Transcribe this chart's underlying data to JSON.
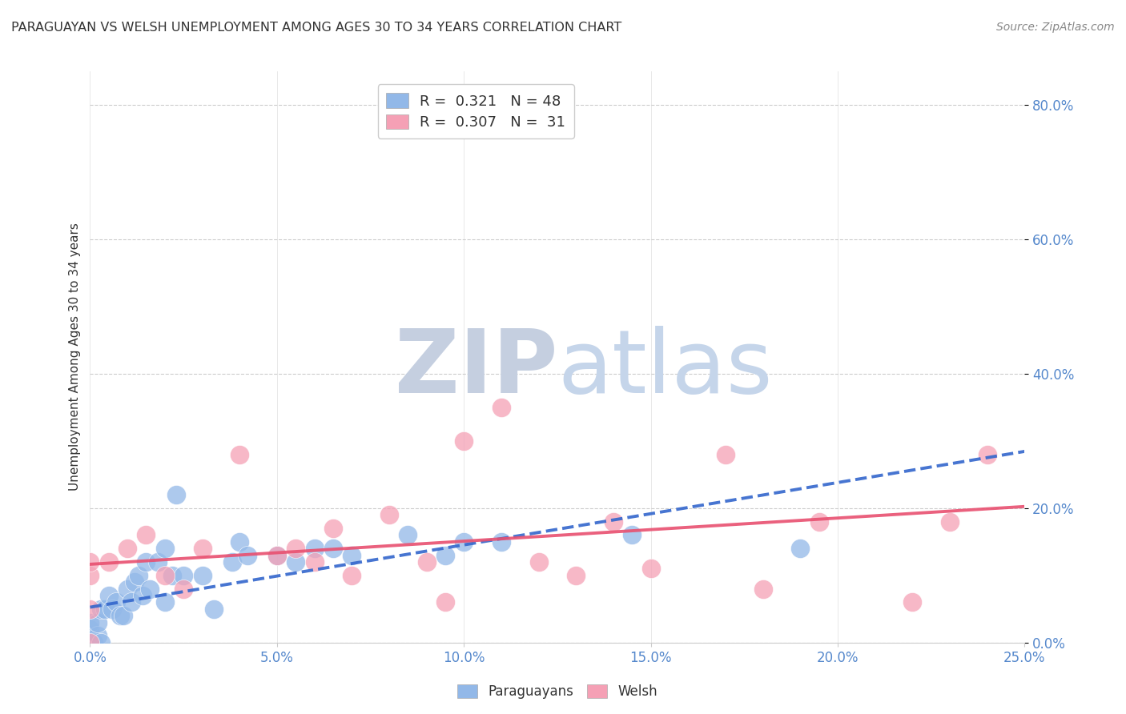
{
  "title": "PARAGUAYAN VS WELSH UNEMPLOYMENT AMONG AGES 30 TO 34 YEARS CORRELATION CHART",
  "source": "Source: ZipAtlas.com",
  "ylabel_label": "Unemployment Among Ages 30 to 34 years",
  "xlim": [
    0.0,
    0.25
  ],
  "ylim": [
    0.0,
    0.85
  ],
  "paraguayan_R": 0.321,
  "paraguayan_N": 48,
  "welsh_R": 0.307,
  "welsh_N": 31,
  "paraguayan_color": "#92b8e8",
  "welsh_color": "#f5a0b5",
  "paraguayan_line_color": "#3366cc",
  "welsh_line_color": "#e85070",
  "background_color": "#ffffff",
  "grid_color": "#cccccc",
  "tick_label_color": "#5588cc",
  "title_color": "#333333",
  "source_color": "#888888",
  "ylabel_color": "#333333",
  "watermark_ZIP_color": "#c5cfe0",
  "watermark_atlas_color": "#c5d5ea",
  "paraguayan_x": [
    0.0,
    0.0,
    0.0,
    0.0,
    0.0,
    0.0,
    0.0,
    0.001,
    0.001,
    0.002,
    0.002,
    0.003,
    0.003,
    0.004,
    0.005,
    0.006,
    0.007,
    0.008,
    0.009,
    0.01,
    0.011,
    0.012,
    0.013,
    0.014,
    0.015,
    0.016,
    0.018,
    0.02,
    0.02,
    0.022,
    0.023,
    0.025,
    0.03,
    0.033,
    0.038,
    0.04,
    0.042,
    0.05,
    0.055,
    0.06,
    0.065,
    0.07,
    0.085,
    0.095,
    0.1,
    0.11,
    0.145,
    0.19
  ],
  "paraguayan_y": [
    0.0,
    0.0,
    0.0,
    0.0,
    0.01,
    0.02,
    0.03,
    0.0,
    0.0,
    0.01,
    0.03,
    0.0,
    0.05,
    0.05,
    0.07,
    0.05,
    0.06,
    0.04,
    0.04,
    0.08,
    0.06,
    0.09,
    0.1,
    0.07,
    0.12,
    0.08,
    0.12,
    0.06,
    0.14,
    0.1,
    0.22,
    0.1,
    0.1,
    0.05,
    0.12,
    0.15,
    0.13,
    0.13,
    0.12,
    0.14,
    0.14,
    0.13,
    0.16,
    0.13,
    0.15,
    0.15,
    0.16,
    0.14
  ],
  "welsh_x": [
    0.0,
    0.0,
    0.0,
    0.0,
    0.005,
    0.01,
    0.015,
    0.02,
    0.025,
    0.03,
    0.04,
    0.05,
    0.055,
    0.06,
    0.065,
    0.07,
    0.08,
    0.09,
    0.095,
    0.1,
    0.11,
    0.12,
    0.13,
    0.14,
    0.15,
    0.17,
    0.18,
    0.195,
    0.22,
    0.23,
    0.24
  ],
  "welsh_y": [
    0.0,
    0.05,
    0.1,
    0.12,
    0.12,
    0.14,
    0.16,
    0.1,
    0.08,
    0.14,
    0.28,
    0.13,
    0.14,
    0.12,
    0.17,
    0.1,
    0.19,
    0.12,
    0.06,
    0.3,
    0.35,
    0.12,
    0.1,
    0.18,
    0.11,
    0.28,
    0.08,
    0.18,
    0.06,
    0.18,
    0.28
  ]
}
